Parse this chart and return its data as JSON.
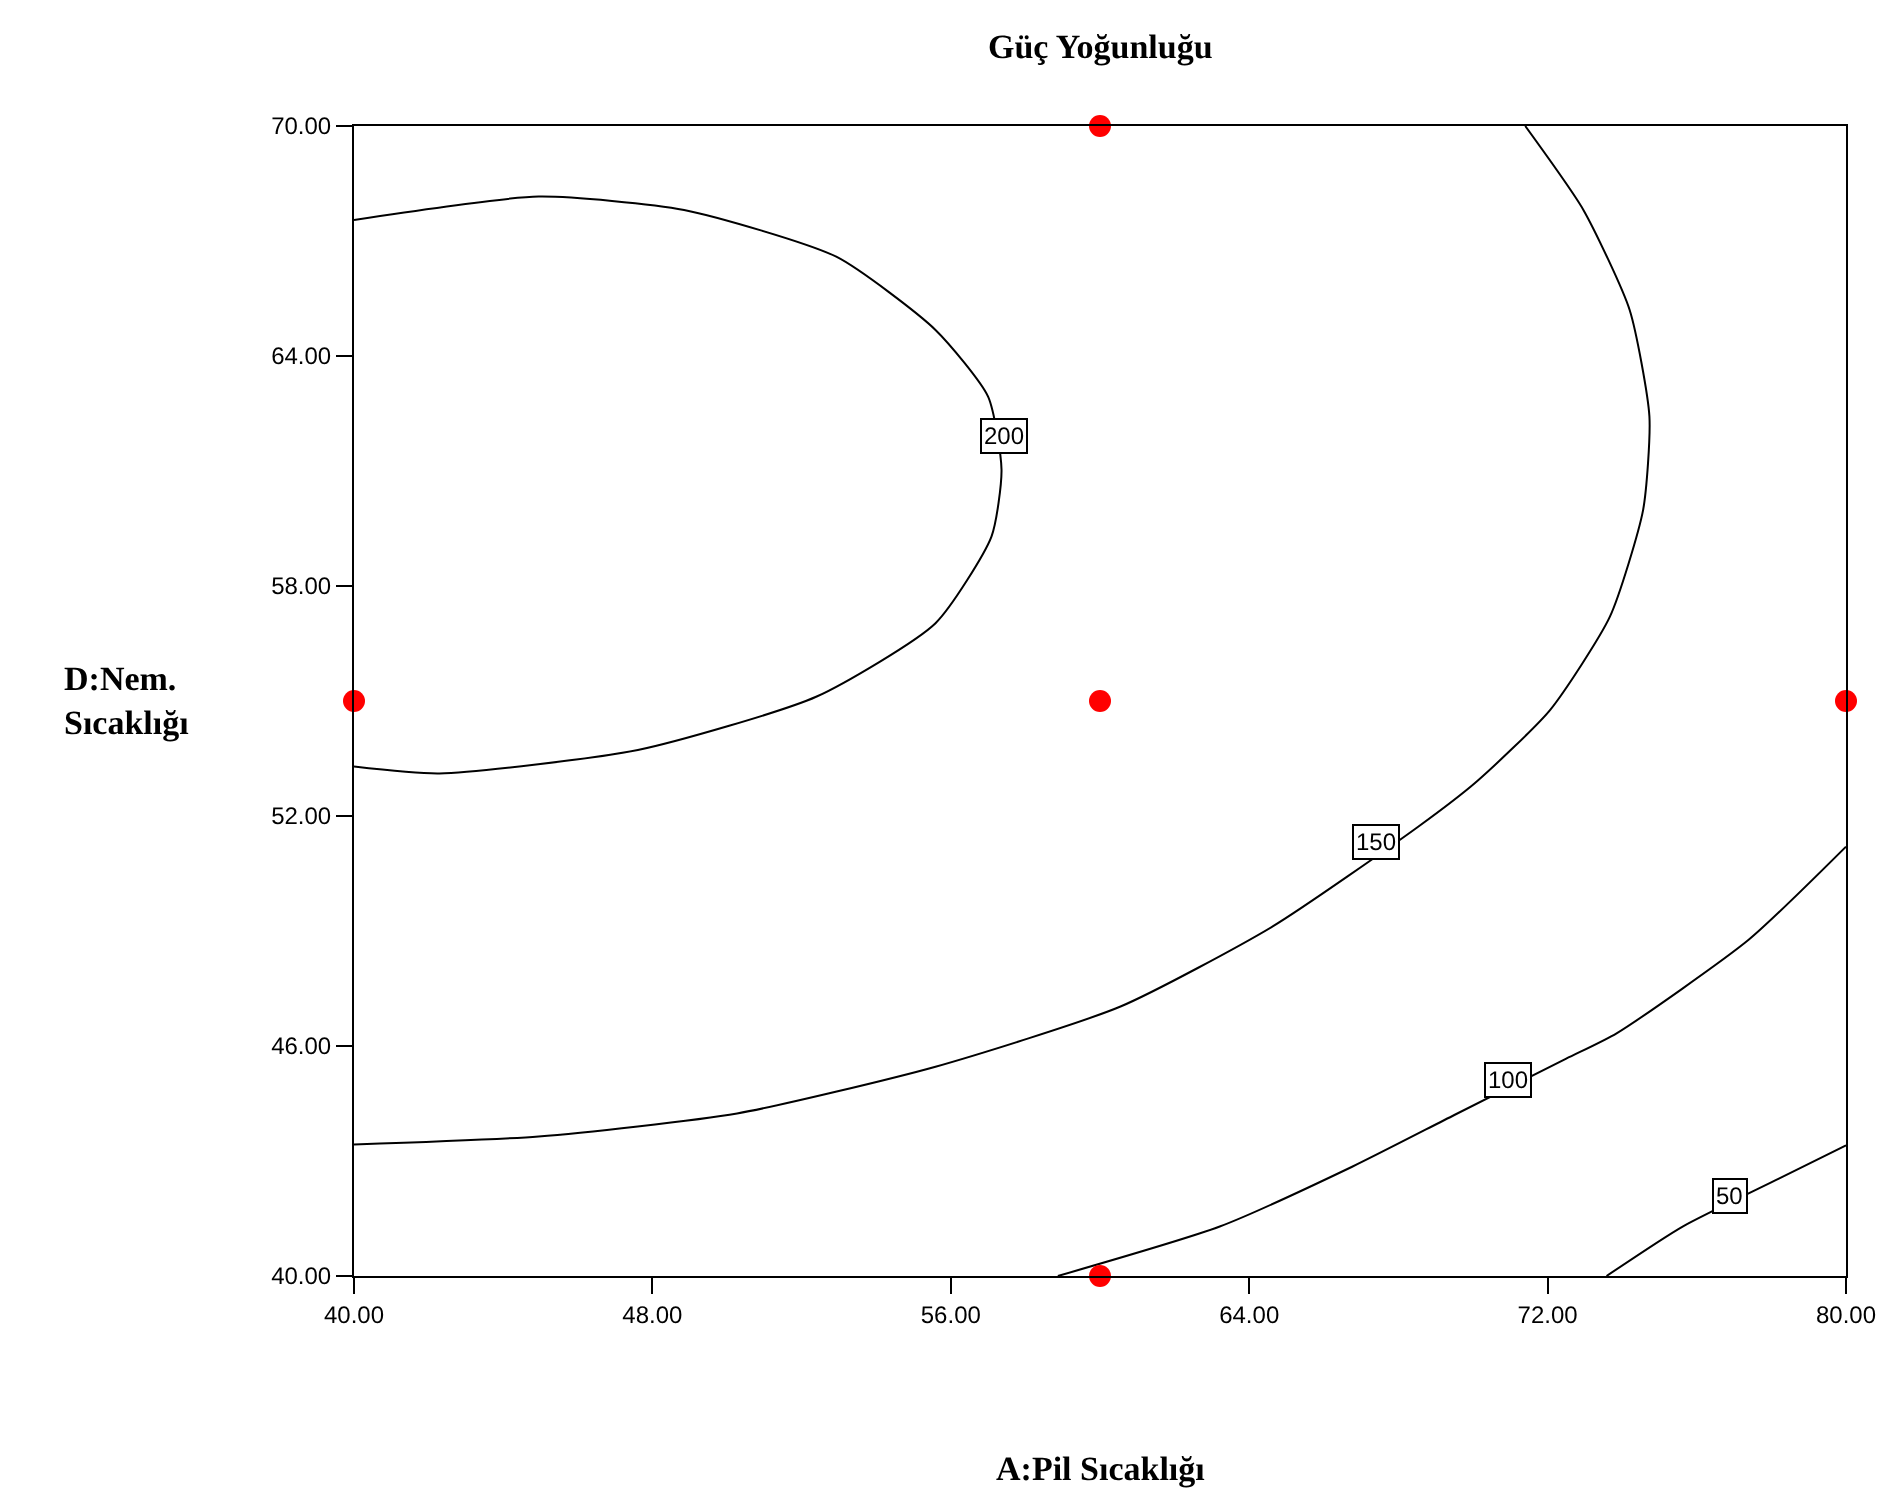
{
  "chart_data": {
    "type": "line",
    "title": "Güç Yoğunluğu",
    "xlabel": "A:Pil Sıcaklığı",
    "ylabel": "D:Nem.\nSıcaklığı",
    "series": [
      {
        "color": "#000000",
        "x": [
          40,
          44.95,
          48.85,
          52.93,
          55.59,
          57.0,
          57.36,
          57.09,
          55.59,
          52.39,
          47.61,
          42.29,
          40
        ],
        "values": [
          67.55,
          68.16,
          67.81,
          66.59,
          64.68,
          62.94,
          61.03,
          59.29,
          57.03,
          55.11,
          53.72,
          53.11,
          53.29
        ]
      },
      {
        "color": "#000000",
        "x": [
          71.4,
          72.96,
          74.2,
          74.73,
          74.56,
          73.67,
          72.07,
          70.1,
          68.53,
          64.63,
          60.55,
          55.59,
          50.27,
          44.95,
          40
        ],
        "values": [
          70,
          67.81,
          65.2,
          62.42,
          59.98,
          57.2,
          54.77,
          52.9,
          51.72,
          49.12,
          47.03,
          45.46,
          44.24,
          43.64,
          43.43
        ]
      },
      {
        "color": "#000000",
        "x": [
          58.87,
          63.21,
          66.76,
          69.5,
          72.5,
          73.85,
          77.39,
          80
        ],
        "values": [
          40,
          41.29,
          42.85,
          44.2,
          45.67,
          46.33,
          48.77,
          51.2
        ]
      },
      {
        "color": "#000000",
        "x": [
          73.58,
          75.62,
          78.2,
          80
        ],
        "values": [
          40,
          41.29,
          42.54,
          43.41
        ]
      },
      {
        "type": "scatter",
        "color": "#ff0000",
        "marker": "circle",
        "x": [
          40,
          60,
          80,
          60,
          60
        ],
        "values": [
          55,
          55,
          55,
          70,
          40
        ]
      }
    ],
    "annotations": [
      {
        "text": "200",
        "x": 57.4,
        "y": 61.9
      },
      {
        "text": "150",
        "x": 67.4,
        "y": 51.3
      },
      {
        "text": "100",
        "x": 70.96,
        "y": 45.1
      },
      {
        "text": "50",
        "x": 76.9,
        "y": 42.1
      }
    ],
    "xlim": [
      40,
      80
    ],
    "xticks": [
      {
        "value": 40,
        "label": "40.00"
      },
      {
        "value": 48,
        "label": "48.00"
      },
      {
        "value": 56,
        "label": "56.00"
      },
      {
        "value": 64,
        "label": "64.00"
      },
      {
        "value": 72,
        "label": "72.00"
      },
      {
        "value": 80,
        "label": "80.00"
      }
    ],
    "ylim": [
      40,
      70
    ],
    "yticks": [
      {
        "value": 40,
        "label": "40.00"
      },
      {
        "value": 46,
        "label": "46.00"
      },
      {
        "value": 52,
        "label": "52.00"
      },
      {
        "value": 58,
        "label": "58.00"
      },
      {
        "value": 64,
        "label": "64.00"
      },
      {
        "value": 70,
        "label": "70.00"
      }
    ],
    "marker": "none"
  }
}
